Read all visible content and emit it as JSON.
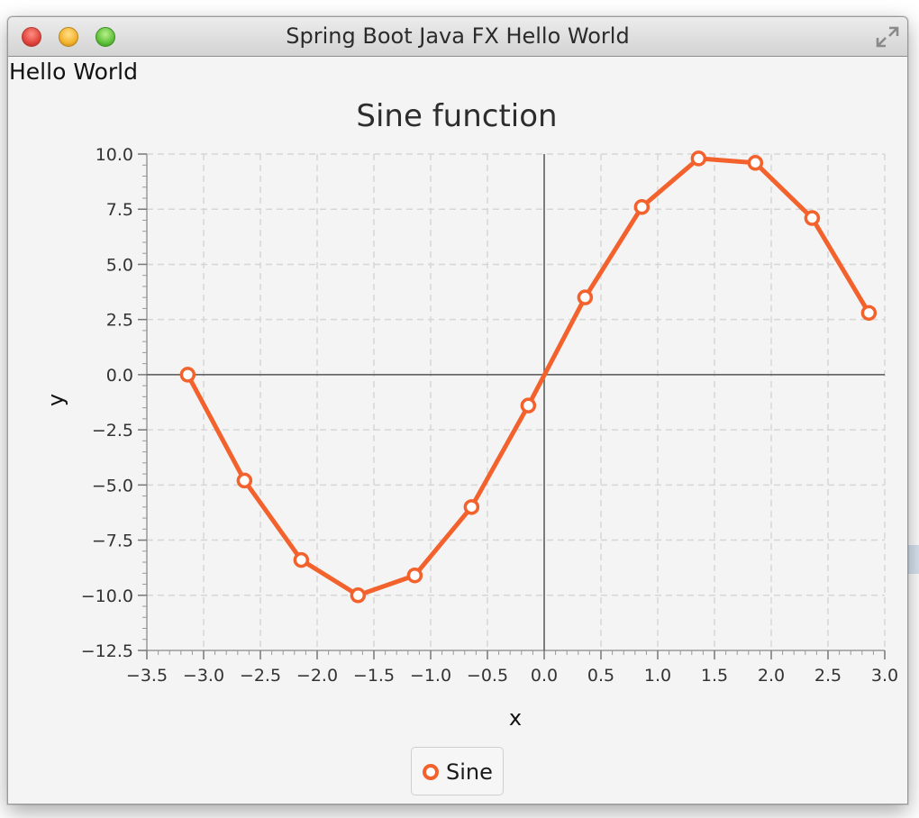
{
  "window": {
    "title": "Spring Boot Java FX Hello World"
  },
  "content": {
    "hello_label": "Hello World"
  },
  "colors": {
    "series": "#f3622d",
    "titlebar": "#d8d8d8",
    "background": "#f4f4f4"
  },
  "chart_data": {
    "type": "line",
    "title": "Sine function",
    "xlabel": "x",
    "ylabel": "y",
    "xlim": [
      -3.5,
      3.0
    ],
    "ylim": [
      -12.5,
      10.0
    ],
    "x_ticks": [
      "-3.5",
      "-3.0",
      "-2.5",
      "-2.0",
      "-1.5",
      "-1.0",
      "-0.5",
      "0.0",
      "0.5",
      "1.0",
      "1.5",
      "2.0",
      "2.5",
      "3.0"
    ],
    "y_ticks": [
      "10.0",
      "7.5",
      "5.0",
      "2.5",
      "0.0",
      "-2.5",
      "-5.0",
      "-7.5",
      "-10.0",
      "-12.5"
    ],
    "grid": true,
    "legend_position": "bottom",
    "series": [
      {
        "name": "Sine",
        "x": [
          -3.14,
          -2.64,
          -2.14,
          -1.64,
          -1.14,
          -0.64,
          -0.14,
          0.36,
          0.86,
          1.36,
          1.86,
          2.36,
          2.86
        ],
        "y": [
          0.0,
          -4.8,
          -8.4,
          -10.0,
          -9.1,
          -6.0,
          -1.4,
          3.5,
          7.6,
          9.8,
          9.6,
          7.1,
          2.8
        ]
      }
    ]
  }
}
